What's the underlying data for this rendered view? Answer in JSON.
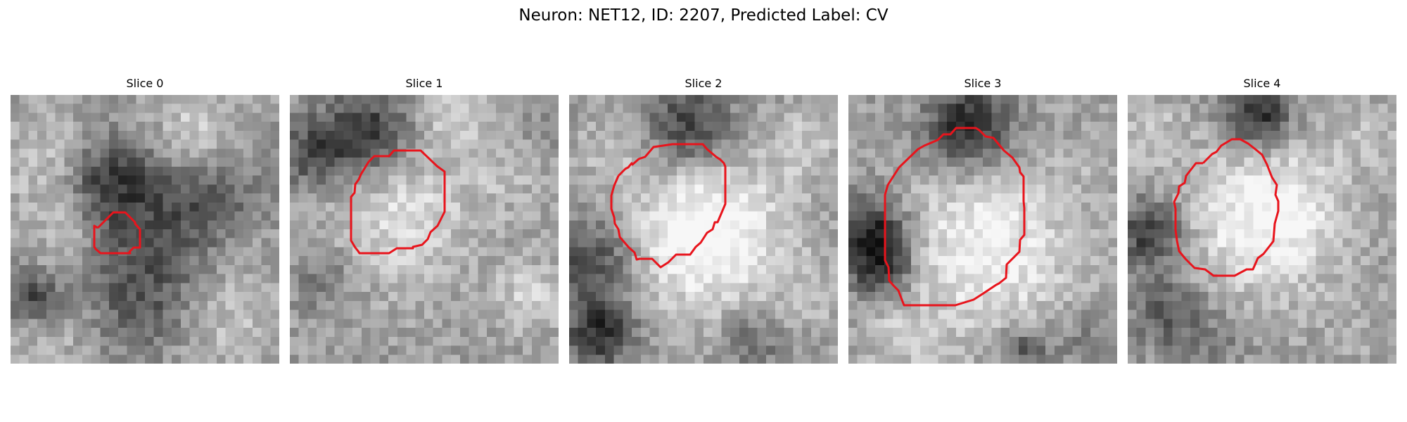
{
  "figure": {
    "title": "Neuron: NET12, ID: 2207, Predicted Label: CV"
  },
  "style": {
    "contour_color": "#e8141c",
    "colormap": "gray"
  },
  "panels": [
    {
      "label": "Slice 0"
    },
    {
      "label": "Slice 1"
    },
    {
      "label": "Slice 2"
    },
    {
      "label": "Slice 3"
    },
    {
      "label": "Slice 4"
    }
  ]
}
